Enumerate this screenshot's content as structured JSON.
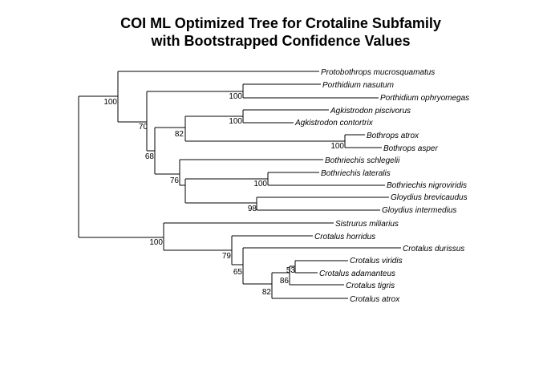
{
  "title": {
    "line1": "COI ML Optimized Tree for Crotaline Subfamily",
    "line2": "with Bootstrapped Confidence Values"
  },
  "taxa": {
    "protobothrops_mucrosquamatus": "Protobothrops mucrosquamatus",
    "porthidium_nasutum": "Porthidium nasutum",
    "porthidium_ophryomegas": "Porthidium ophryomegas",
    "agkistrodon_piscivorus": "Agkistrodon piscivorus",
    "agkistrodon_contortrix": "Agkistrodon contortrix",
    "bothrops_atrox": "Bothrops atrox",
    "bothrops_asper": "Bothrops asper",
    "bothriechis_schlegelii": "Bothriechis schlegelii",
    "bothriechis_lateralis": "Bothriechis lateralis",
    "bothriechis_nigroviridis": "Bothriechis nigroviridis",
    "gloydius_brevicaudus": "Gloydius brevicaudus",
    "gloydius_intermedius": "Gloydius intermedius",
    "sistrurus_miliarius": "Sistrurus miliarius",
    "crotalus_horridus": "Crotalus horridus",
    "crotalus_durissus": "Crotalus durissus",
    "crotalus_viridis": "Crotalus viridis",
    "crotalus_adamanteus": "Crotalus adamanteus",
    "crotalus_tigris": "Crotalus tigris",
    "crotalus_atrox": "Crotalus atrox"
  },
  "bootstrap": {
    "root_upper": "100",
    "porthidium": "100",
    "upper_70": "70",
    "agkistrodon": "100",
    "node_82_upper": "82",
    "bothrops": "100",
    "node_68": "68",
    "node_76": "76",
    "bothriechis": "100",
    "gloydius": "98",
    "crotalus_root": "100",
    "node_79": "79",
    "node_65": "65",
    "node_53": "53",
    "node_86": "86",
    "node_82_lower": "82"
  }
}
